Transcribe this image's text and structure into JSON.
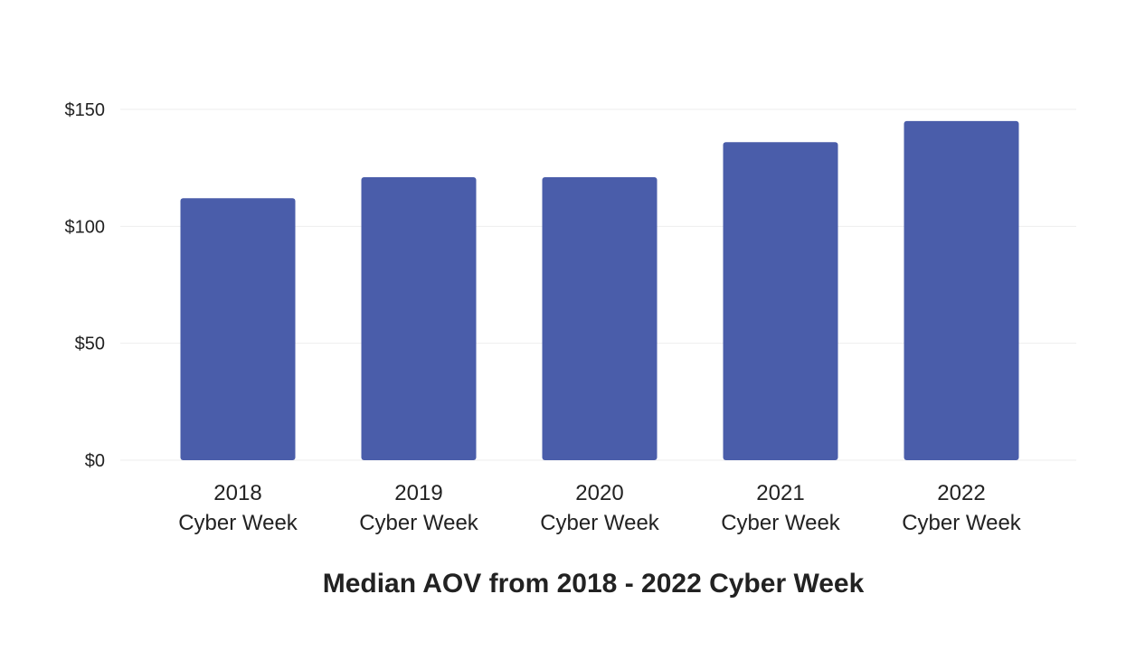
{
  "chart_data": {
    "type": "bar",
    "title": "Median AOV from 2018 - 2022 Cyber Week",
    "xlabel": "",
    "ylabel": "",
    "categories": [
      [
        "2018",
        "Cyber Week"
      ],
      [
        "2019",
        "Cyber Week"
      ],
      [
        "2020",
        "Cyber Week"
      ],
      [
        "2021",
        "Cyber Week"
      ],
      [
        "2022",
        "Cyber Week"
      ]
    ],
    "values": [
      112,
      121,
      121,
      136,
      145
    ],
    "ylim": [
      0,
      150
    ],
    "yticks": [
      0,
      50,
      100,
      150
    ],
    "ytick_labels": [
      "$0",
      "$50",
      "$100",
      "$150"
    ],
    "grid": true,
    "legend": "none",
    "colors": {
      "bar": "#4a5daa",
      "grid": "#eeeeee",
      "text": "#222222"
    }
  }
}
